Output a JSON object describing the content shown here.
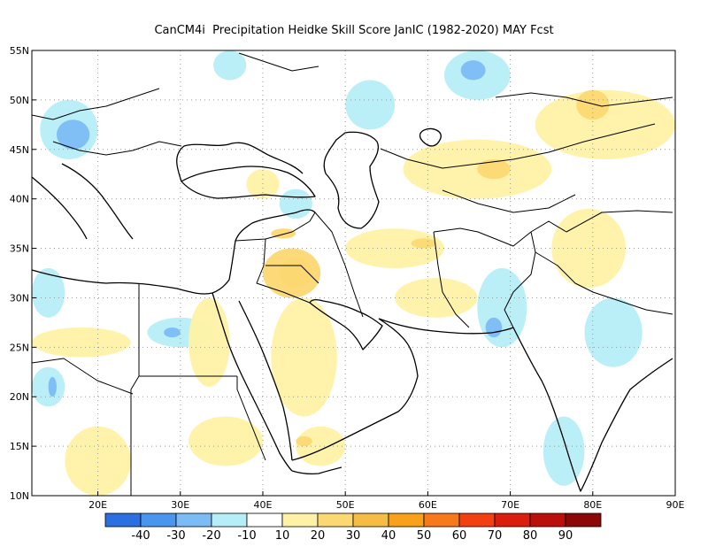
{
  "title": "CanCM4i  Precipitation Heidke Skill Score JanIC (1982-2020) MAY Fcst",
  "map": {
    "lon_range": [
      12,
      90
    ],
    "lat_range": [
      10,
      55
    ],
    "lon_ticks": [
      {
        "value": 20,
        "label": "20E"
      },
      {
        "value": 30,
        "label": "30E"
      },
      {
        "value": 40,
        "label": "40E"
      },
      {
        "value": 50,
        "label": "50E"
      },
      {
        "value": 60,
        "label": "60E"
      },
      {
        "value": 70,
        "label": "70E"
      },
      {
        "value": 80,
        "label": "80E"
      },
      {
        "value": 90,
        "label": "90E"
      }
    ],
    "lat_ticks": [
      {
        "value": 55,
        "label": "55N"
      },
      {
        "value": 50,
        "label": "50N"
      },
      {
        "value": 45,
        "label": "45N"
      },
      {
        "value": 40,
        "label": "40N"
      },
      {
        "value": 35,
        "label": "35N"
      },
      {
        "value": 30,
        "label": "30N"
      },
      {
        "value": 25,
        "label": "25N"
      },
      {
        "value": 20,
        "label": "20N"
      },
      {
        "value": 15,
        "label": "15N"
      },
      {
        "value": 10,
        "label": "10N"
      }
    ],
    "gridlines": "dotted"
  },
  "colorbar": {
    "bins": [
      {
        "color": "#2b6fe0"
      },
      {
        "color": "#4a96ee"
      },
      {
        "color": "#7cbcf5"
      },
      {
        "color": "#b6eef8"
      },
      {
        "color": "#ffffff"
      },
      {
        "color": "#fff2a6"
      },
      {
        "color": "#fcd873"
      },
      {
        "color": "#f6bd45"
      },
      {
        "color": "#f9a11b"
      },
      {
        "color": "#f7791a"
      },
      {
        "color": "#f24010"
      },
      {
        "color": "#db1d0d"
      },
      {
        "color": "#bb0f0c"
      },
      {
        "color": "#8c0707"
      }
    ],
    "labels": [
      "-40",
      "-30",
      "-20",
      "-10",
      "10",
      "20",
      "30",
      "40",
      "50",
      "60",
      "70",
      "80",
      "90"
    ]
  },
  "shaded_areas": [
    {
      "value": -15,
      "lon": [
        13,
        20
      ],
      "lat": [
        44,
        50
      ]
    },
    {
      "value": -25,
      "lon": [
        15,
        19
      ],
      "lat": [
        45,
        48
      ]
    },
    {
      "value": -15,
      "lon": [
        12,
        16
      ],
      "lat": [
        19,
        23
      ]
    },
    {
      "value": -25,
      "lon": [
        14,
        15
      ],
      "lat": [
        20,
        22
      ]
    },
    {
      "value": -15,
      "lon": [
        26,
        34
      ],
      "lat": [
        25,
        28
      ]
    },
    {
      "value": -25,
      "lon": [
        28,
        30
      ],
      "lat": [
        26,
        27
      ]
    },
    {
      "value": -15,
      "lon": [
        50,
        56
      ],
      "lat": [
        47,
        52
      ]
    },
    {
      "value": -15,
      "lon": [
        62,
        70
      ],
      "lat": [
        50,
        55
      ]
    },
    {
      "value": -25,
      "lon": [
        64,
        67
      ],
      "lat": [
        52,
        54
      ]
    },
    {
      "value": -15,
      "lon": [
        66,
        72
      ],
      "lat": [
        25,
        33
      ]
    },
    {
      "value": -25,
      "lon": [
        67,
        69
      ],
      "lat": [
        26,
        28
      ]
    },
    {
      "value": -15,
      "lon": [
        79,
        86
      ],
      "lat": [
        23,
        30
      ]
    },
    {
      "value": -15,
      "lon": [
        74,
        79
      ],
      "lat": [
        11,
        18
      ]
    },
    {
      "value": -15,
      "lon": [
        12,
        16
      ],
      "lat": [
        28,
        33
      ]
    },
    {
      "value": -15,
      "lon": [
        34,
        38
      ],
      "lat": [
        52,
        55
      ]
    },
    {
      "value": -15,
      "lon": [
        42,
        46
      ],
      "lat": [
        38,
        41
      ]
    },
    {
      "value": 15,
      "lon": [
        38,
        42
      ],
      "lat": [
        40,
        43
      ]
    },
    {
      "value": 15,
      "lon": [
        31,
        40
      ],
      "lat": [
        13,
        18
      ]
    },
    {
      "value": 15,
      "lon": [
        41,
        49
      ],
      "lat": [
        18,
        30
      ]
    },
    {
      "value": 15,
      "lon": [
        44,
        50
      ],
      "lat": [
        13,
        17
      ]
    },
    {
      "value": 15,
      "lon": [
        50,
        62
      ],
      "lat": [
        33,
        37
      ]
    },
    {
      "value": 15,
      "lon": [
        57,
        75
      ],
      "lat": [
        40,
        46
      ]
    },
    {
      "value": 15,
      "lon": [
        73,
        90
      ],
      "lat": [
        44,
        51
      ]
    },
    {
      "value": 15,
      "lon": [
        75,
        84
      ],
      "lat": [
        31,
        39
      ]
    },
    {
      "value": 15,
      "lon": [
        31,
        36
      ],
      "lat": [
        21,
        30
      ]
    },
    {
      "value": 15,
      "lon": [
        16,
        24
      ],
      "lat": [
        10,
        17
      ]
    },
    {
      "value": 15,
      "lon": [
        12,
        24
      ],
      "lat": [
        24,
        27
      ]
    },
    {
      "value": 15,
      "lon": [
        56,
        66
      ],
      "lat": [
        28,
        32
      ]
    },
    {
      "value": 25,
      "lon": [
        40,
        47
      ],
      "lat": [
        30,
        35
      ]
    },
    {
      "value": 25,
      "lon": [
        42,
        46
      ],
      "lat": [
        31,
        34
      ]
    },
    {
      "value": 25,
      "lon": [
        66,
        70
      ],
      "lat": [
        42,
        44
      ]
    },
    {
      "value": 25,
      "lon": [
        78,
        82
      ],
      "lat": [
        48,
        51
      ]
    },
    {
      "value": 25,
      "lon": [
        58,
        61
      ],
      "lat": [
        35,
        36
      ]
    },
    {
      "value": 25,
      "lon": [
        44,
        46
      ],
      "lat": [
        15,
        16
      ]
    },
    {
      "value": 25,
      "lon": [
        41,
        44
      ],
      "lat": [
        36,
        37
      ]
    }
  ]
}
